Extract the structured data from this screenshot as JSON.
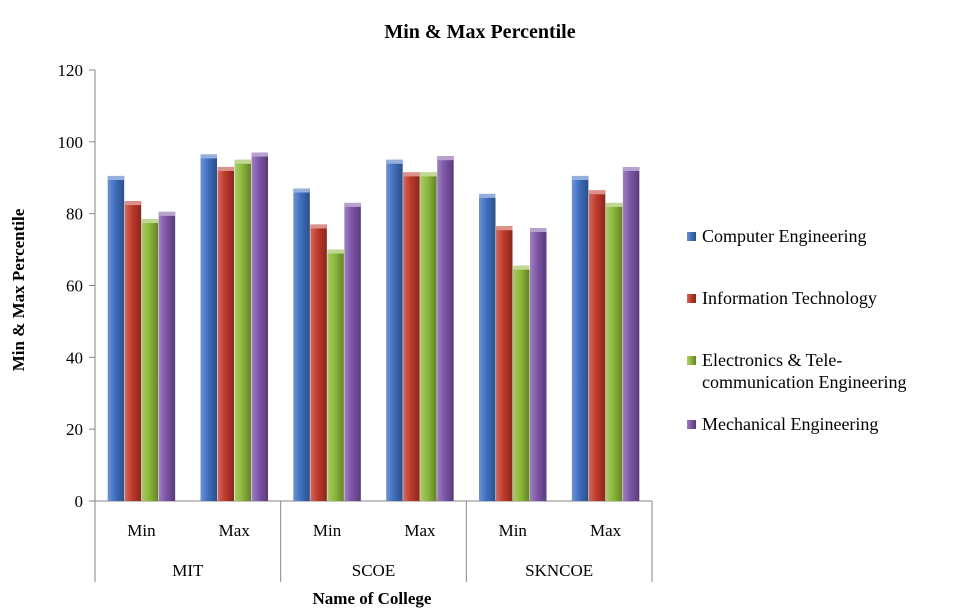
{
  "chart_data": {
    "type": "bar",
    "title": "Min & Max Percentile",
    "ylabel": "Min & Max Percentile",
    "xlabel": "Name of College",
    "ylim": [
      0,
      120
    ],
    "yticks": [
      0,
      20,
      40,
      60,
      80,
      100,
      120
    ],
    "groups": [
      {
        "name": "MIT",
        "categories": [
          "Min",
          "Max"
        ]
      },
      {
        "name": "SCOE",
        "categories": [
          "Min",
          "Max"
        ]
      },
      {
        "name": "SKNCOE",
        "categories": [
          "Min",
          "Max"
        ]
      }
    ],
    "series": [
      {
        "name": "Computer Engineering",
        "color": "#3f6fc0",
        "values": [
          90.5,
          96.5,
          87,
          95,
          85.5,
          90.5
        ]
      },
      {
        "name": "Information Technology",
        "color": "#c0392b",
        "values": [
          83.5,
          93,
          77,
          91.5,
          76.5,
          86.5
        ]
      },
      {
        "name": "Electronics & Tele-communication  Engineering",
        "label_lines": [
          "Electronics & Tele-",
          "communication  Engineering"
        ],
        "color": "#8db83a",
        "values": [
          78.5,
          95,
          70,
          91.5,
          65.5,
          83
        ]
      },
      {
        "name": "Mechanical Engineering",
        "color": "#7d55a8",
        "values": [
          80.5,
          97,
          83,
          96,
          76,
          93
        ]
      }
    ],
    "grid": false,
    "legend_position": "right"
  }
}
